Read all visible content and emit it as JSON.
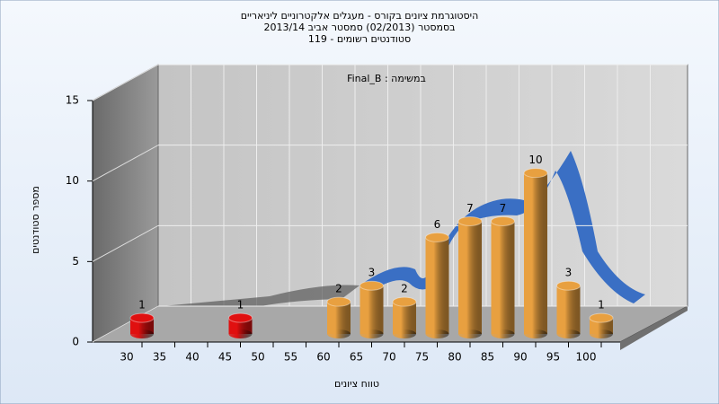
{
  "chart_data": {
    "type": "bar",
    "title": [
      "היסטוגרמת ציונים בקורס - מעגלים אלקטרוניים ליניאריים",
      "בסמסטר  (02/2013)  סמסטר אביב 2013/14",
      "119 - סטודנטים רשומים"
    ],
    "annotation": "Final_B : במשימה",
    "x_label": "טווח ציונים",
    "y_label": "מספר סטודנטים",
    "categories": [
      "30",
      "35",
      "40",
      "45",
      "50",
      "55",
      "60",
      "65",
      "70",
      "75",
      "80",
      "85",
      "90",
      "95",
      "100"
    ],
    "values": [
      1,
      0,
      0,
      1,
      0,
      0,
      2,
      3,
      2,
      6,
      7,
      7,
      10,
      3,
      1
    ],
    "colors": [
      "#e01010",
      "#e01010",
      "#e01010",
      "#e01010",
      "#e01010",
      "#e01010",
      "#e8a040",
      "#e8a040",
      "#e8a040",
      "#e8a040",
      "#e8a040",
      "#e8a040",
      "#e8a040",
      "#e8a040",
      "#e8a040"
    ],
    "ylim": [
      0,
      15
    ],
    "yticks": [
      0,
      5,
      10,
      15
    ],
    "grid": true
  }
}
